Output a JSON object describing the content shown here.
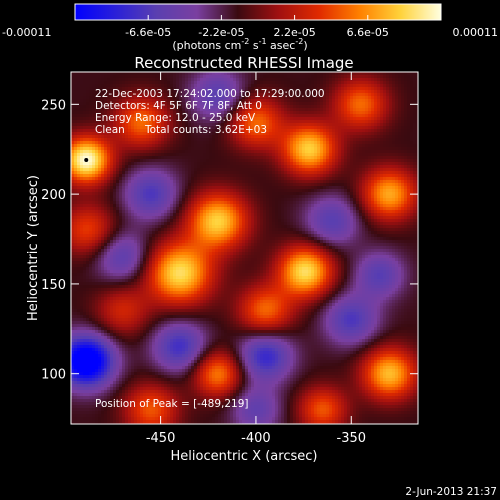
{
  "colorbar": {
    "tick_labels": [
      "-0.00011",
      "-6.6e-05",
      "-2.2e-05",
      "2.2e-05",
      "6.6e-05",
      "0.00011"
    ],
    "tick_values": [
      -0.00011,
      -6.6e-05,
      -2.2e-05,
      2.2e-05,
      6.6e-05,
      0.00011
    ],
    "range": [
      -0.00011,
      0.00011
    ],
    "units_text": "(photons cm",
    "units_sup1": "-2",
    "units_mid": " s",
    "units_sup2": "-1",
    "units_end": " asec",
    "units_sup3": "-2",
    "units_close": ")",
    "colormap": [
      "#0000ff",
      "#2a20d8",
      "#5a3fb0",
      "#7a3fa0",
      "#3a0a10",
      "#a01010",
      "#e02a00",
      "#ff8000",
      "#ffd23a",
      "#ffffe0"
    ]
  },
  "chart_data": {
    "type": "heatmap",
    "title": "Reconstructed RHESSI Image",
    "xlabel": "Heliocentric X (arcsec)",
    "ylabel": "Heliocentric Y (arcsec)",
    "xlim": [
      -497,
      -315
    ],
    "ylim": [
      72,
      268
    ],
    "x_ticks": [
      -450,
      -400,
      -350
    ],
    "x_tick_labels": [
      "-450",
      "-400",
      "-350"
    ],
    "y_ticks": [
      100,
      150,
      200,
      250
    ],
    "y_tick_labels": [
      "100",
      "150",
      "200",
      "250"
    ],
    "peak": {
      "x": -489,
      "y": 219
    },
    "blobs": [
      {
        "x": -489,
        "y": 219,
        "v": 1.0,
        "r": 9
      },
      {
        "x": -440,
        "y": 156,
        "v": 0.85,
        "r": 12
      },
      {
        "x": -420,
        "y": 185,
        "v": 0.8,
        "r": 11
      },
      {
        "x": -374,
        "y": 157,
        "v": 0.85,
        "r": 10
      },
      {
        "x": -372,
        "y": 225,
        "v": 0.8,
        "r": 10
      },
      {
        "x": -330,
        "y": 200,
        "v": 0.7,
        "r": 10
      },
      {
        "x": -330,
        "y": 100,
        "v": 0.75,
        "r": 10
      },
      {
        "x": -420,
        "y": 100,
        "v": 0.6,
        "r": 9
      },
      {
        "x": -460,
        "y": 240,
        "v": 0.55,
        "r": 10
      },
      {
        "x": -400,
        "y": 240,
        "v": 0.55,
        "r": 10
      },
      {
        "x": -365,
        "y": 80,
        "v": 0.5,
        "r": 9
      },
      {
        "x": -455,
        "y": 80,
        "v": 0.5,
        "r": 10
      },
      {
        "x": -488,
        "y": 180,
        "v": 0.45,
        "r": 10
      },
      {
        "x": -345,
        "y": 250,
        "v": 0.55,
        "r": 10
      },
      {
        "x": -395,
        "y": 135,
        "v": 0.55,
        "r": 10
      },
      {
        "x": -470,
        "y": 135,
        "v": 0.35,
        "r": 10
      },
      {
        "x": -489,
        "y": 107,
        "v": -1.0,
        "r": 10
      },
      {
        "x": -395,
        "y": 110,
        "v": -0.55,
        "r": 10
      },
      {
        "x": -440,
        "y": 115,
        "v": -0.5,
        "r": 10
      },
      {
        "x": -350,
        "y": 130,
        "v": -0.45,
        "r": 10
      },
      {
        "x": -455,
        "y": 200,
        "v": -0.45,
        "r": 10
      },
      {
        "x": -360,
        "y": 185,
        "v": -0.4,
        "r": 10
      },
      {
        "x": -420,
        "y": 255,
        "v": -0.4,
        "r": 10
      },
      {
        "x": -335,
        "y": 155,
        "v": -0.4,
        "r": 9
      },
      {
        "x": -470,
        "y": 165,
        "v": -0.4,
        "r": 10
      },
      {
        "x": -400,
        "y": 80,
        "v": -0.35,
        "r": 9
      }
    ]
  },
  "annotations": {
    "line1": "22-Dec-2003 17:24:02.000 to 17:29:00.000",
    "line2": "Detectors: 4F 5F 6F 7F 8F, Att 0",
    "line3": "Energy Range: 12.0 - 25.0 keV",
    "line4_a": "Clean",
    "line4_b": "Total counts: 3.62E+03",
    "peak_text": "Position of Peak = [-489,219]"
  },
  "footer_date": "2-Jun-2013 21:37"
}
